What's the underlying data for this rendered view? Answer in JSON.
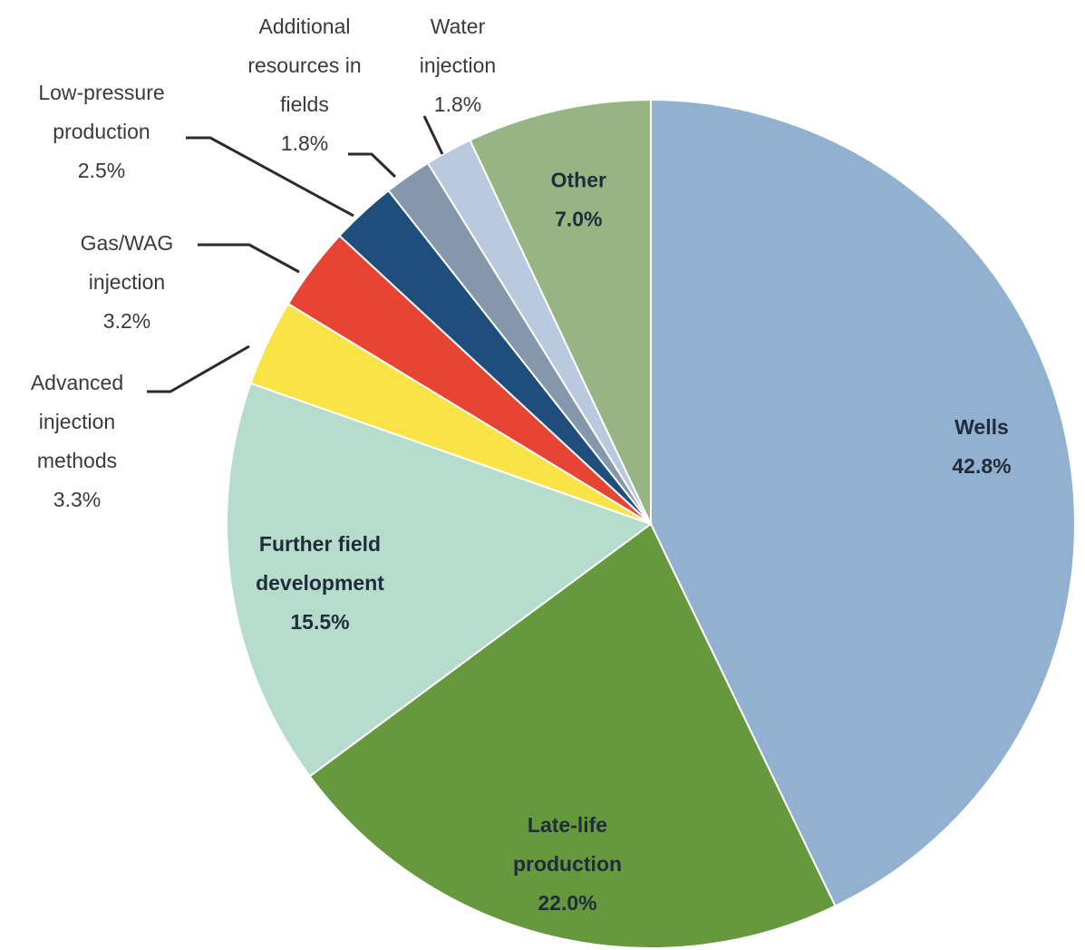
{
  "chart_data": {
    "type": "pie",
    "start_angle_deg": 0,
    "direction": "clockwise",
    "slices": [
      {
        "name": "Wells",
        "value": 42.8,
        "label_lines": [
          "Wells",
          "42.8%"
        ],
        "color": "#92b0cf"
      },
      {
        "name": "Late-life production",
        "value": 22.0,
        "label_lines": [
          "Late-life",
          "production",
          "22.0%"
        ],
        "color": "#66983e"
      },
      {
        "name": "Further field development",
        "value": 15.5,
        "label_lines": [
          "Further field",
          "development",
          "15.5%"
        ],
        "color": "#b6dccb"
      },
      {
        "name": "Advanced injection methods",
        "value": 3.3,
        "label_lines": [
          "Advanced",
          "injection",
          "methods",
          "3.3%"
        ],
        "color": "#fae445"
      },
      {
        "name": "Gas/WAG injection",
        "value": 3.2,
        "label_lines": [
          "Gas/WAG",
          "injection",
          "3.2%"
        ],
        "color": "#e84433"
      },
      {
        "name": "Low-pressure production",
        "value": 2.5,
        "label_lines": [
          "Low-pressure",
          "production",
          "2.5%"
        ],
        "color": "#1f4e7c"
      },
      {
        "name": "Additional resources in fields",
        "value": 1.8,
        "label_lines": [
          "Additional",
          "resources in",
          "fields",
          "1.8%"
        ],
        "color": "#8597ab"
      },
      {
        "name": "Water injection",
        "value": 1.8,
        "label_lines": [
          "Water",
          "injection",
          "1.8%"
        ],
        "color": "#b9c9de"
      },
      {
        "name": "Other",
        "value": 7.0,
        "label_lines": [
          "Other",
          "7.0%"
        ],
        "color": "#97b582"
      }
    ]
  }
}
